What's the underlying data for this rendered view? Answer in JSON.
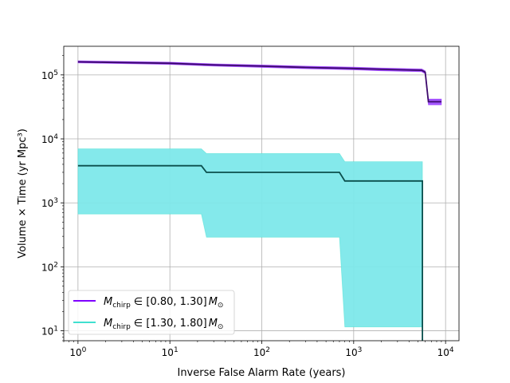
{
  "chart_data": {
    "type": "line",
    "xscale": "log",
    "yscale": "log",
    "xlabel": "Inverse False Alarm Rate (years)",
    "ylabel": "Volume × Time (yr Mpc³)",
    "xlim": [
      0.7,
      14000
    ],
    "ylim": [
      7,
      280000
    ],
    "x_ticks": [
      {
        "value": 1,
        "base": "10",
        "exp": "0"
      },
      {
        "value": 10,
        "base": "10",
        "exp": "1"
      },
      {
        "value": 100,
        "base": "10",
        "exp": "2"
      },
      {
        "value": 1000,
        "base": "10",
        "exp": "3"
      },
      {
        "value": 10000,
        "base": "10",
        "exp": "4"
      }
    ],
    "y_ticks": [
      {
        "value": 10,
        "base": "10",
        "exp": "1"
      },
      {
        "value": 100,
        "base": "10",
        "exp": "2"
      },
      {
        "value": 1000,
        "base": "10",
        "exp": "3"
      },
      {
        "value": 10000,
        "base": "10",
        "exp": "4"
      },
      {
        "value": 100000,
        "base": "10",
        "exp": "5"
      }
    ],
    "grid": true,
    "legend_position": "lower-left",
    "series": [
      {
        "name": "M_chirp ∈ [0.80, 1.30] M_⊙",
        "legend": {
          "prefix": "M",
          "sub": "chirp",
          "range": " ∈ [0.80, 1.30]",
          "unit": "M",
          "unit_sub": "⊙"
        },
        "color": "#7f00ff",
        "line_color": "#3d0a6b",
        "band_color": "#9e4dff",
        "x": [
          1,
          10,
          30,
          100,
          300,
          1000,
          2000,
          5500,
          6000,
          6500,
          9000
        ],
        "y": [
          160000,
          152000,
          143000,
          137000,
          131000,
          126000,
          122000,
          118000,
          110000,
          38000,
          38000
        ],
        "lower": [
          154000,
          146000,
          137000,
          131000,
          125000,
          120000,
          116000,
          112000,
          104000,
          34000,
          34000
        ],
        "upper": [
          166000,
          158000,
          149000,
          143000,
          137000,
          132000,
          128000,
          124000,
          116000,
          42000,
          42000
        ]
      },
      {
        "name": "M_chirp ∈ [1.30, 1.80] M_⊙",
        "legend": {
          "prefix": "M",
          "sub": "chirp",
          "range": " ∈ [1.30, 1.80]",
          "unit": "M",
          "unit_sub": "⊙"
        },
        "color": "#40e0d0",
        "line_color": "#0b4f4c",
        "band_color": "#7de8ea",
        "x": [
          1,
          22,
          25,
          700,
          800,
          5600,
          5600
        ],
        "y": [
          3800,
          3800,
          3000,
          3000,
          2200,
          2200,
          7
        ],
        "lower": [
          670,
          670,
          290,
          290,
          11.5,
          11.5,
          7
        ],
        "upper": [
          7000,
          7000,
          5900,
          5900,
          4400,
          4400,
          7
        ]
      }
    ]
  }
}
